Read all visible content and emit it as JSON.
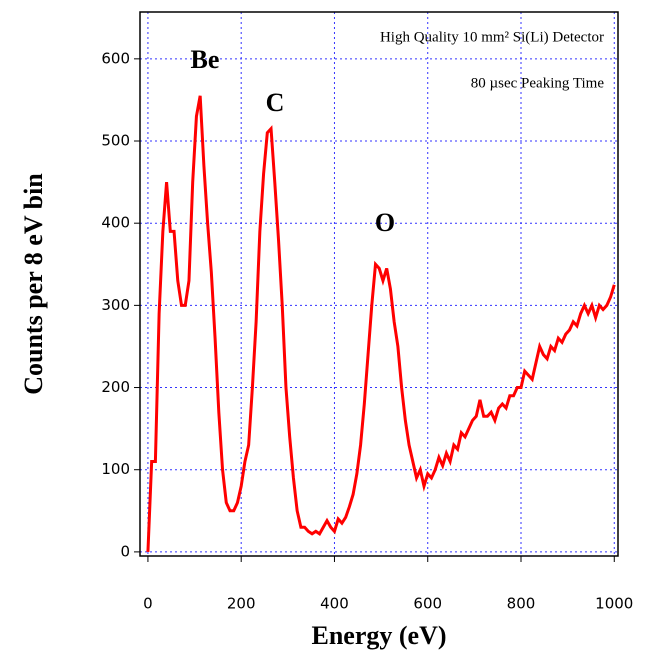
{
  "chart_data": {
    "type": "line",
    "xlabel": "Energy (eV)",
    "ylabel": "Counts per 8 eV bin",
    "annotations": [
      "High Quality 10 mm² Si(Li) Detector",
      "80 µsec Peaking Time",
      "Be",
      "C",
      "O"
    ],
    "x": [
      0,
      8,
      16,
      24,
      32,
      40,
      48,
      56,
      64,
      72,
      80,
      88,
      96,
      104,
      112,
      120,
      128,
      136,
      144,
      152,
      160,
      168,
      176,
      184,
      192,
      200,
      208,
      216,
      224,
      232,
      240,
      248,
      256,
      264,
      272,
      280,
      288,
      296,
      304,
      312,
      320,
      328,
      336,
      344,
      352,
      360,
      368,
      376,
      384,
      392,
      400,
      408,
      416,
      424,
      432,
      440,
      448,
      456,
      464,
      472,
      480,
      488,
      496,
      504,
      512,
      520,
      528,
      536,
      544,
      552,
      560,
      568,
      576,
      584,
      592,
      600,
      608,
      616,
      624,
      632,
      640,
      648,
      656,
      664,
      672,
      680,
      688,
      696,
      704,
      712,
      720,
      728,
      736,
      744,
      752,
      760,
      768,
      776,
      784,
      792,
      800,
      808,
      816,
      824,
      832,
      840,
      848,
      856,
      864,
      872,
      880,
      888,
      896,
      904,
      912,
      920,
      928,
      936,
      944,
      952,
      960,
      968,
      976,
      984,
      992,
      1000
    ],
    "series": [
      {
        "color": "#ff0000",
        "values": [
          0,
          110,
          110,
          290,
          390,
          450,
          390,
          390,
          330,
          300,
          300,
          330,
          450,
          530,
          555,
          470,
          400,
          340,
          260,
          170,
          100,
          60,
          50,
          50,
          60,
          80,
          110,
          130,
          200,
          280,
          390,
          460,
          510,
          515,
          450,
          380,
          300,
          200,
          140,
          90,
          50,
          30,
          30,
          25,
          22,
          25,
          22,
          30,
          38,
          30,
          25,
          40,
          35,
          42,
          55,
          70,
          95,
          130,
          180,
          240,
          300,
          350,
          345,
          330,
          345,
          320,
          280,
          250,
          200,
          160,
          130,
          110,
          90,
          100,
          80,
          95,
          90,
          100,
          115,
          105,
          120,
          110,
          130,
          125,
          145,
          140,
          150,
          160,
          165,
          185,
          165,
          165,
          170,
          160,
          175,
          180,
          175,
          190,
          190,
          200,
          200,
          220,
          215,
          210,
          230,
          250,
          240,
          235,
          250,
          245,
          260,
          255,
          265,
          270,
          280,
          275,
          290,
          300,
          290,
          300,
          285,
          300,
          295,
          300,
          310,
          325
        ]
      }
    ],
    "xlim": [
      -17,
      1008
    ],
    "ylim": [
      -5,
      657
    ],
    "xticks": [
      0,
      200,
      400,
      600,
      800,
      1000
    ],
    "yticks": [
      0,
      100,
      200,
      300,
      400,
      500,
      600
    ],
    "grid": true
  }
}
